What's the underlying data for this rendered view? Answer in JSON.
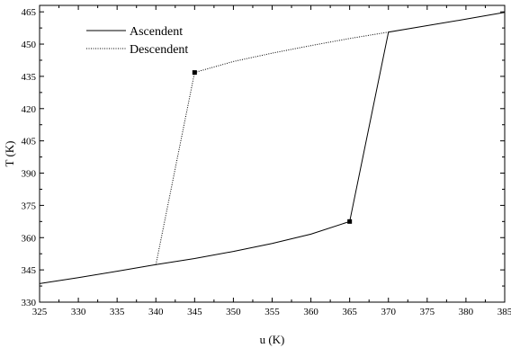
{
  "chart_data": {
    "type": "line",
    "title": "",
    "xlabel": "u (K)",
    "ylabel": "T (K)",
    "xlim": [
      325,
      385
    ],
    "ylim": [
      330,
      468
    ],
    "x_ticks": [
      325,
      330,
      335,
      340,
      345,
      350,
      355,
      360,
      365,
      370,
      375,
      380,
      385
    ],
    "y_ticks": [
      330,
      345,
      360,
      375,
      390,
      405,
      420,
      435,
      450,
      465
    ],
    "grid": false,
    "legend_position": "top-left",
    "series": [
      {
        "name": "Ascendent",
        "style": "solid",
        "color": "#000000",
        "points": [
          [
            325,
            338.6
          ],
          [
            330,
            341.4
          ],
          [
            335,
            344.4
          ],
          [
            340,
            347.5
          ],
          [
            345,
            350.3
          ],
          [
            350,
            353.6
          ],
          [
            355,
            357.3
          ],
          [
            360,
            361.6
          ],
          [
            365,
            367.5
          ],
          [
            370,
            455.6
          ],
          [
            375,
            458.6
          ],
          [
            380,
            461.6
          ],
          [
            385,
            464.8
          ]
        ],
        "marker": [
          365,
          367.5
        ]
      },
      {
        "name": "Descendent",
        "style": "dotted",
        "color": "#000000",
        "points": [
          [
            340,
            347.5
          ],
          [
            345,
            436.8
          ],
          [
            350,
            441.9
          ],
          [
            355,
            445.8
          ],
          [
            360,
            449.3
          ],
          [
            365,
            452.6
          ],
          [
            370,
            455.6
          ]
        ],
        "marker": [
          345,
          436.8
        ]
      }
    ]
  }
}
